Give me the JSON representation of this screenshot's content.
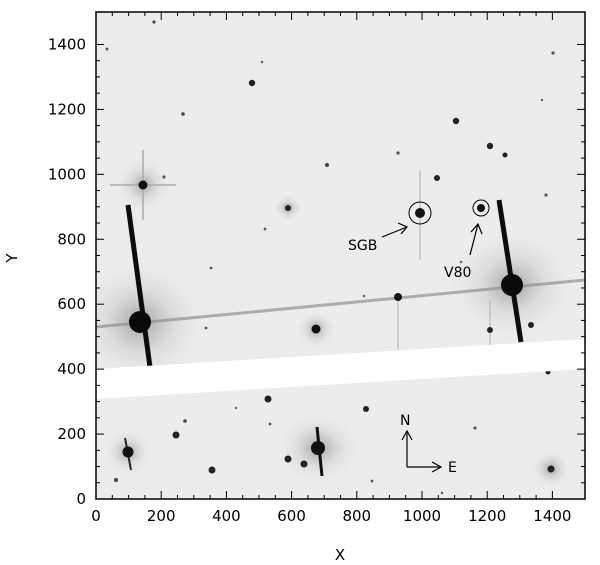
{
  "image": {
    "kind": "astronomical star field (inverted greyscale)",
    "x_axis": {
      "label": "X",
      "range": [
        0,
        1500
      ],
      "ticks": [
        0,
        200,
        400,
        600,
        800,
        1000,
        1200,
        1400
      ]
    },
    "y_axis": {
      "label": "Y",
      "range": [
        0,
        1500
      ],
      "ticks": [
        0,
        200,
        400,
        600,
        800,
        1000,
        1200,
        1400
      ]
    },
    "annotations": {
      "sgb": {
        "label": "SGB",
        "x": 995,
        "y": 875
      },
      "v80": {
        "label": "V80",
        "x": 1177,
        "y": 893
      }
    },
    "compass": {
      "north": "N",
      "east": "E"
    }
  }
}
